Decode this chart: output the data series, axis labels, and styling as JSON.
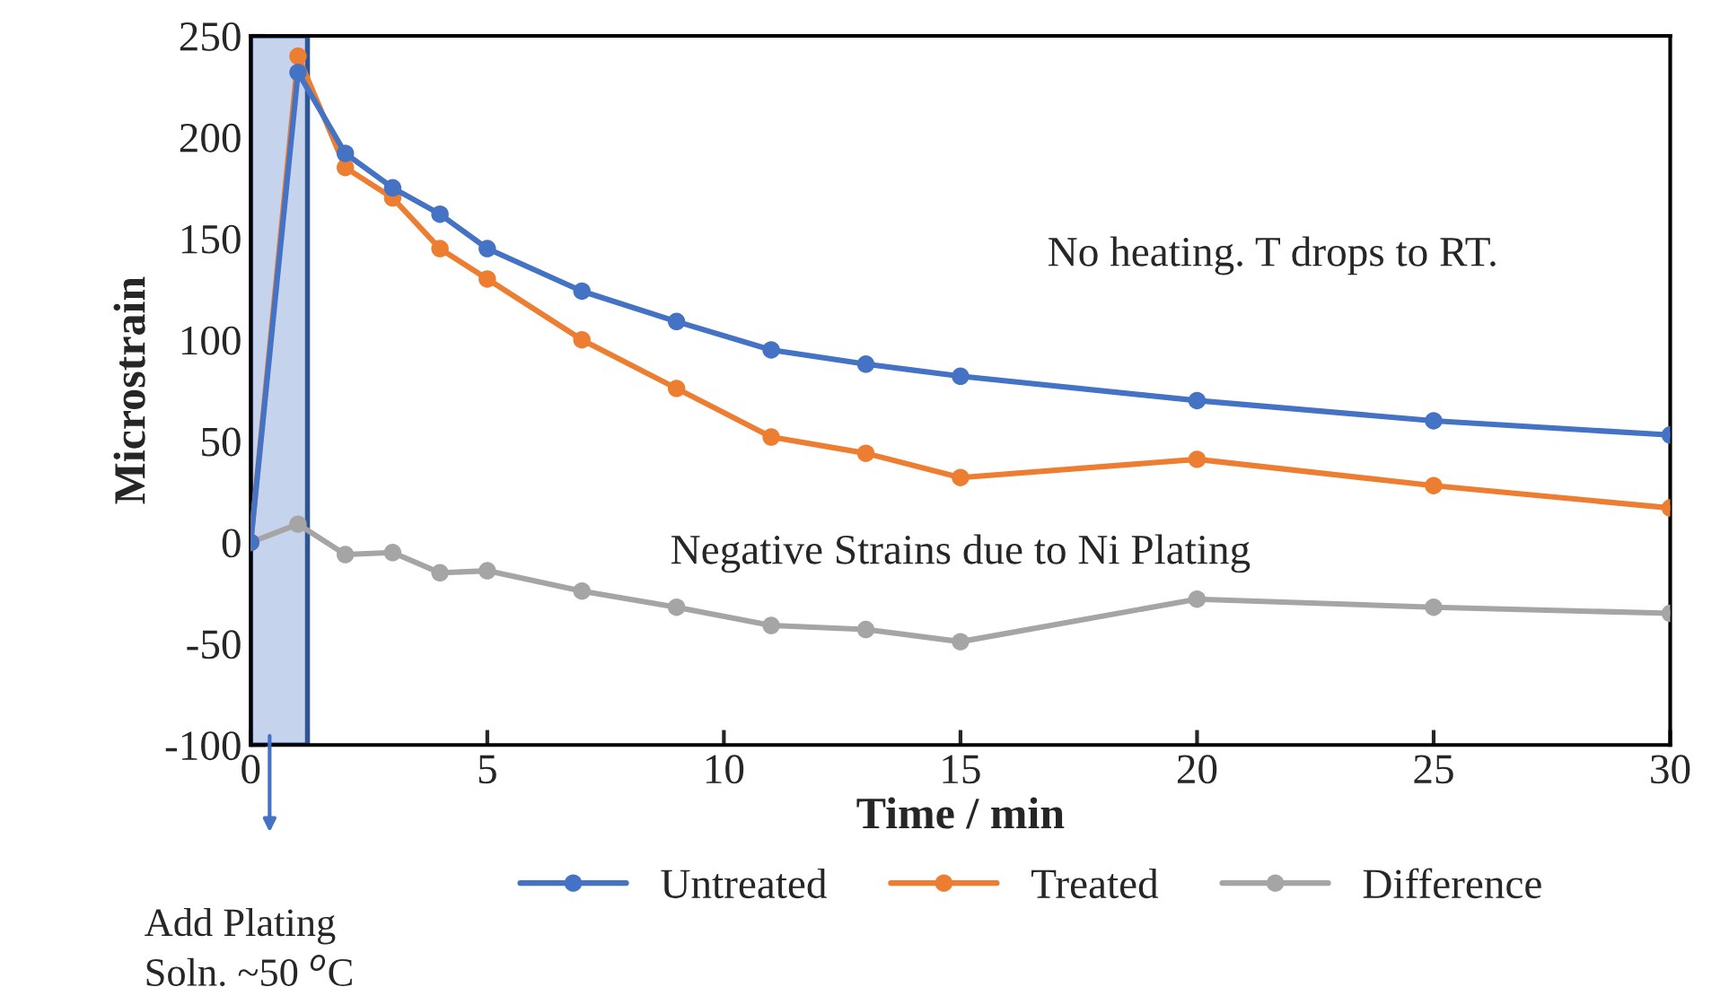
{
  "chart_data": {
    "type": "line",
    "xlabel": "Time / min",
    "ylabel": "Microstrain",
    "x": [
      0,
      1,
      2,
      3,
      4,
      5,
      7,
      9,
      11,
      13,
      15,
      20,
      25,
      30
    ],
    "series": [
      {
        "name": "Untreated",
        "color": "#4472c4",
        "values": [
          0,
          232,
          192,
          175,
          162,
          145,
          124,
          109,
          95,
          88,
          82,
          70,
          60,
          53
        ]
      },
      {
        "name": "Treated",
        "color": "#ed7d31",
        "values": [
          0,
          240,
          185,
          170,
          145,
          130,
          100,
          76,
          52,
          44,
          32,
          41,
          28,
          17
        ]
      },
      {
        "name": "Difference",
        "color": "#a5a5a5",
        "values": [
          0,
          9,
          -6,
          -5,
          -15,
          -14,
          -24,
          -32,
          -41,
          -43,
          -49,
          -28,
          -32,
          -35
        ]
      }
    ],
    "xlim": [
      0,
      30
    ],
    "xticks": [
      0,
      5,
      10,
      15,
      20,
      25,
      30
    ],
    "ylim": [
      -100,
      250
    ],
    "yticks": [
      -100,
      -50,
      0,
      50,
      100,
      150,
      200,
      250
    ],
    "bands": [
      {
        "axis": "x",
        "from": 0,
        "to": 1.2,
        "color": "#c5d3ec"
      }
    ],
    "annotations": [
      "No heating. T drops to RT.",
      "Negative Strains due to Ni Plating",
      "Add Plating\nSoln. ~50 $^{o}$C"
    ],
    "marker": "circle",
    "line_style": "solid",
    "legend": "bottom",
    "grid": false
  }
}
